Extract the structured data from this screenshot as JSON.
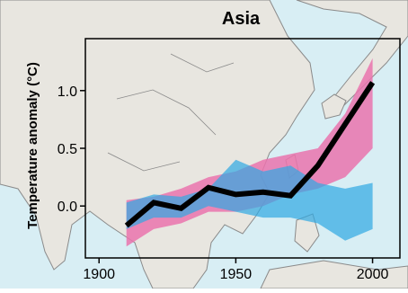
{
  "chart_data": {
    "type": "line",
    "title": "Asia",
    "xlabel": "",
    "ylabel": "Temperature anomaly (°C)",
    "xlim": [
      1895,
      2010
    ],
    "ylim": [
      -0.45,
      1.45
    ],
    "x_ticks": [
      1900,
      1950,
      2000
    ],
    "x_tick_labels": [
      "1900",
      "1950",
      "2000"
    ],
    "y_ticks": [
      0.0,
      0.5,
      1.0
    ],
    "y_tick_labels": [
      "0.0",
      "0.5",
      "1.0"
    ],
    "grid": false,
    "legend": "none",
    "observed": {
      "x": [
        1910,
        1920,
        1930,
        1940,
        1950,
        1960,
        1970,
        1980,
        2000
      ],
      "y": [
        -0.17,
        0.03,
        -0.02,
        0.16,
        0.1,
        0.12,
        0.09,
        0.35,
        1.07
      ]
    },
    "natural_band": {
      "x": [
        1910,
        1920,
        1930,
        1940,
        1950,
        1960,
        1970,
        1980,
        1990,
        2000
      ],
      "upper": [
        0.03,
        0.1,
        0.08,
        0.15,
        0.4,
        0.3,
        0.35,
        0.2,
        0.15,
        0.2
      ],
      "lower": [
        -0.2,
        -0.1,
        -0.1,
        0.0,
        -0.05,
        -0.1,
        -0.1,
        -0.15,
        -0.3,
        -0.2
      ]
    },
    "forced_band": {
      "x": [
        1910,
        1920,
        1930,
        1940,
        1950,
        1960,
        1970,
        1980,
        1990,
        2000
      ],
      "upper": [
        0.05,
        0.08,
        0.15,
        0.25,
        0.3,
        0.4,
        0.45,
        0.5,
        0.8,
        1.28
      ],
      "lower": [
        -0.35,
        -0.2,
        -0.15,
        -0.05,
        -0.05,
        0.0,
        0.1,
        0.15,
        0.25,
        0.5
      ]
    },
    "colors": {
      "observed_line": "#000000",
      "forced_band": "#ea73ad",
      "natural_band": "#2fa8e3",
      "map_land": "#e8e6e0",
      "map_sea": "#d8eef4",
      "map_border": "#8a8a8a"
    }
  }
}
